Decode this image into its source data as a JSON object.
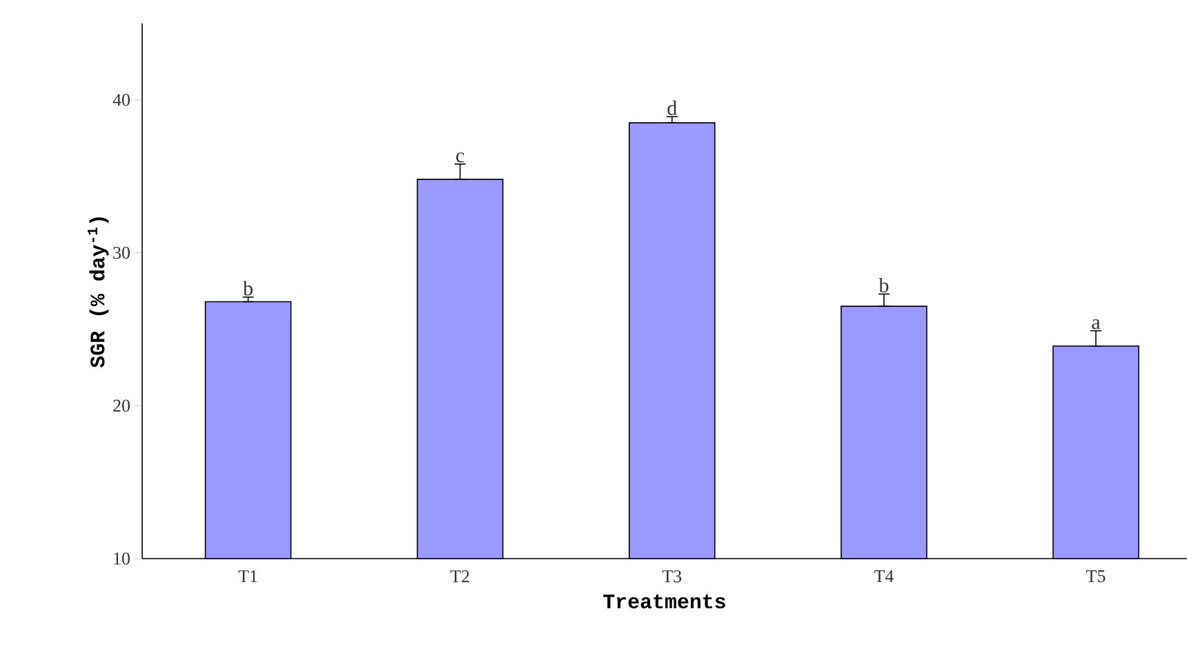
{
  "chart_data": {
    "type": "bar",
    "xlabel": "Treatments",
    "ylabel": "SGR (% day$^{-1}$)",
    "categories": [
      "T1",
      "T2",
      "T3",
      "T4",
      "T5"
    ],
    "values": [
      26.8,
      34.8,
      38.5,
      26.5,
      23.9
    ],
    "errors": [
      [
        26.8,
        27.1
      ],
      [
        34.8,
        35.8
      ],
      [
        38.5,
        38.9
      ],
      [
        26.5,
        27.3
      ],
      [
        23.9,
        24.9
      ]
    ],
    "color": "#9999ff",
    "ylim": [
      10,
      45
    ],
    "yticks": [
      10,
      20,
      30,
      40
    ],
    "annotations": [
      {
        "text": "b",
        "x": "T1",
        "y": 27.1
      },
      {
        "text": "c",
        "x": "T2",
        "y": 35.8
      },
      {
        "text": "d",
        "x": "T3",
        "y": 38.9
      },
      {
        "text": "b",
        "x": "T4",
        "y": 27.3
      },
      {
        "text": "a",
        "x": "T5",
        "y": 24.9
      }
    ]
  }
}
